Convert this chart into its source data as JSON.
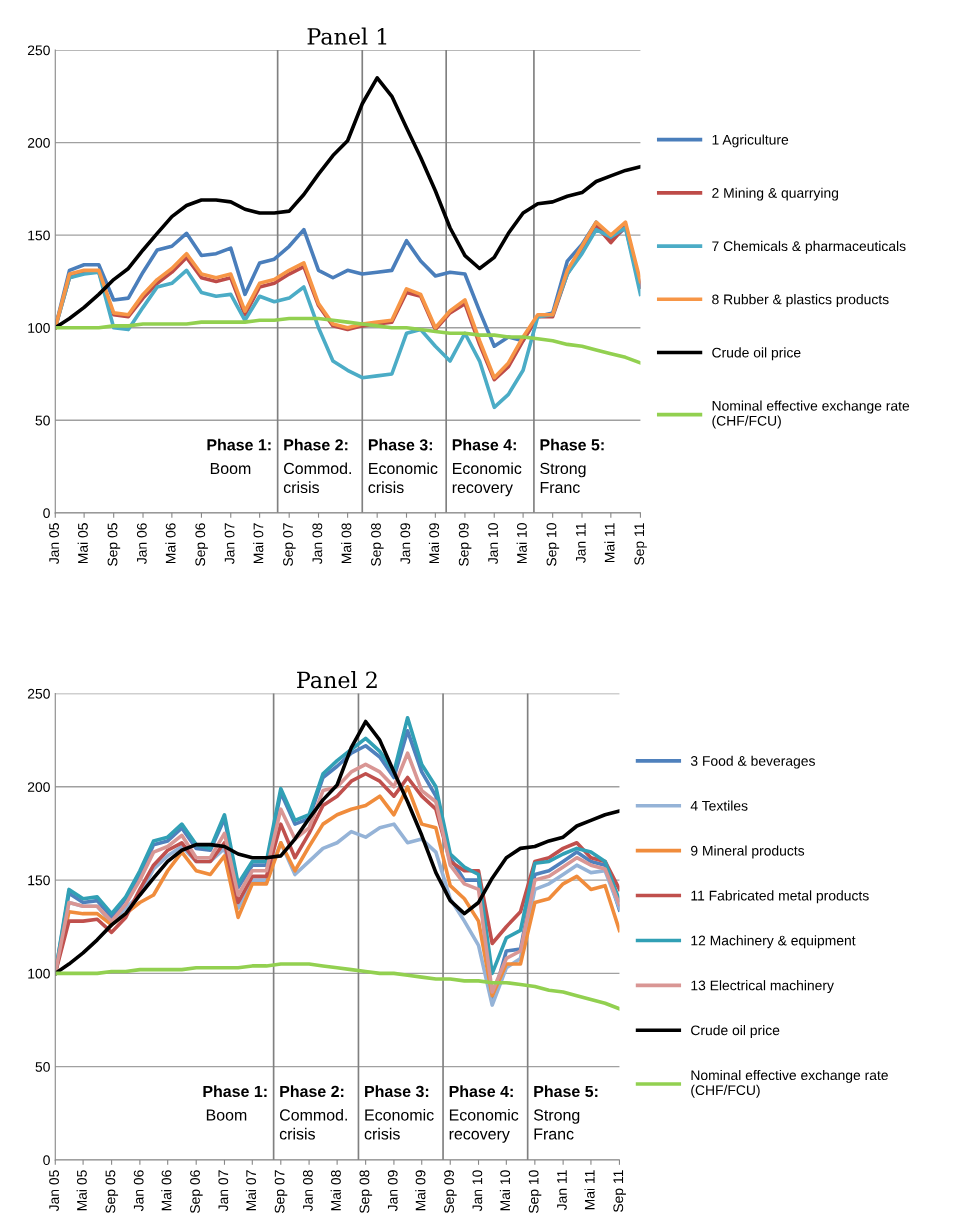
{
  "chart_data": [
    {
      "type": "line",
      "title": "Panel 1",
      "x": [
        "2005-01",
        "2005-03",
        "2005-05",
        "2005-07",
        "2005-09",
        "2005-11",
        "2006-01",
        "2006-03",
        "2006-05",
        "2006-07",
        "2006-09",
        "2006-11",
        "2007-01",
        "2007-03",
        "2007-05",
        "2007-07",
        "2007-09",
        "2007-11",
        "2008-01",
        "2008-03",
        "2008-05",
        "2008-07",
        "2008-09",
        "2008-11",
        "2009-01",
        "2009-03",
        "2009-05",
        "2009-07",
        "2009-09",
        "2009-11",
        "2010-01",
        "2010-03",
        "2010-05",
        "2010-07",
        "2010-09",
        "2010-11",
        "2011-01",
        "2011-03",
        "2011-05",
        "2011-07",
        "2011-09"
      ],
      "series": [
        {
          "name": "1 Agriculture",
          "color": "#4a7ebb",
          "values": [
            100,
            131,
            134,
            134,
            115,
            116,
            130,
            142,
            144,
            151,
            139,
            140,
            143,
            118,
            135,
            137,
            144,
            153,
            131,
            127,
            131,
            129,
            130,
            131,
            147,
            136,
            128,
            130,
            129,
            109,
            90,
            95,
            93,
            106,
            108,
            136,
            145,
            157,
            147,
            154,
            122
          ]
        },
        {
          "name": "2 Mining & quarrying",
          "color": "#be4b48",
          "values": [
            100,
            127,
            130,
            130,
            107,
            106,
            116,
            124,
            130,
            138,
            127,
            125,
            127,
            107,
            122,
            124,
            129,
            133,
            112,
            101,
            99,
            101,
            102,
            103,
            119,
            117,
            99,
            108,
            113,
            91,
            72,
            79,
            93,
            106,
            106,
            129,
            142,
            155,
            146,
            155,
            122
          ]
        },
        {
          "name": "7 Chemicals & pharmaceuticals",
          "color": "#4bacc6",
          "values": [
            100,
            127,
            129,
            130,
            100,
            99,
            111,
            122,
            124,
            131,
            119,
            117,
            118,
            104,
            117,
            114,
            116,
            122,
            100,
            82,
            77,
            73,
            74,
            75,
            97,
            99,
            90,
            82,
            97,
            82,
            57,
            64,
            77,
            106,
            107,
            129,
            140,
            153,
            149,
            154,
            118
          ]
        },
        {
          "name": "8 Rubber & plastics products",
          "color": "#f79646",
          "values": [
            100,
            129,
            131,
            131,
            108,
            107,
            118,
            126,
            132,
            140,
            129,
            127,
            129,
            109,
            124,
            126,
            131,
            135,
            113,
            102,
            100,
            102,
            103,
            104,
            121,
            118,
            100,
            109,
            115,
            93,
            73,
            81,
            95,
            107,
            107,
            131,
            144,
            157,
            150,
            157,
            125
          ]
        },
        {
          "name": "Crude oil price",
          "color": "#000000",
          "values": [
            100,
            105,
            111,
            118,
            126,
            132,
            142,
            151,
            160,
            166,
            169,
            169,
            168,
            164,
            162,
            162,
            163,
            172,
            183,
            193,
            201,
            221,
            235,
            225,
            208,
            192,
            174,
            154,
            139,
            132,
            138,
            151,
            162,
            167,
            168,
            171,
            173,
            179,
            182,
            185,
            187
          ]
        },
        {
          "name": "Nominal effective exchange rate\n(CHF/FCU)",
          "color": "#92d050",
          "values": [
            100,
            100,
            100,
            100,
            101,
            101,
            102,
            102,
            102,
            102,
            103,
            103,
            103,
            103,
            104,
            104,
            105,
            105,
            105,
            104,
            103,
            102,
            101,
            100,
            100,
            99,
            98,
            97,
            97,
            96,
            96,
            95,
            95,
            94,
            93,
            91,
            90,
            88,
            86,
            84,
            81
          ]
        }
      ],
      "xlim": [
        "2005-01",
        "2011-09"
      ],
      "ylim": [
        0,
        250
      ],
      "yticks": [
        0,
        50,
        100,
        150,
        200,
        250
      ],
      "xticks": [
        {
          "value": "2005-01",
          "label": "Jan 05"
        },
        {
          "value": "2005-05",
          "label": "Mai 05"
        },
        {
          "value": "2005-09",
          "label": "Sep 05"
        },
        {
          "value": "2006-01",
          "label": "Jan 06"
        },
        {
          "value": "2006-05",
          "label": "Mai 06"
        },
        {
          "value": "2006-09",
          "label": "Sep 06"
        },
        {
          "value": "2007-01",
          "label": "Jan 07"
        },
        {
          "value": "2007-05",
          "label": "Mai 07"
        },
        {
          "value": "2007-09",
          "label": "Sep 07"
        },
        {
          "value": "2008-01",
          "label": "Jan 08"
        },
        {
          "value": "2008-05",
          "label": "Mai 08"
        },
        {
          "value": "2008-09",
          "label": "Sep 08"
        },
        {
          "value": "2009-01",
          "label": "Jan 09"
        },
        {
          "value": "2009-05",
          "label": "Mai 09"
        },
        {
          "value": "2009-09",
          "label": "Sep 09"
        },
        {
          "value": "2010-01",
          "label": "Jan 10"
        },
        {
          "value": "2010-05",
          "label": "Mai 10"
        },
        {
          "value": "2010-09",
          "label": "Sep 10"
        },
        {
          "value": "2011-01",
          "label": "Jan 11"
        },
        {
          "value": "2011-05",
          "label": "Mai 11"
        },
        {
          "value": "2011-09",
          "label": "Sep 11"
        }
      ],
      "grid": "y",
      "legend": "right",
      "ref_lines": [
        {
          "axis": "x",
          "value": "2007-07-15",
          "color": "#808080"
        },
        {
          "axis": "x",
          "value": "2008-07-01",
          "color": "#808080"
        },
        {
          "axis": "x",
          "value": "2009-06-15",
          "color": "#808080"
        },
        {
          "axis": "x",
          "value": "2010-06-15",
          "color": "#808080"
        }
      ],
      "annotations": [
        "Phase 1:\nBoom",
        "Phase 2:\nCommod.\ncrisis",
        "Phase 3:\nEconomic\ncrisis",
        "Phase 4:\nEconomic\nrecovery",
        "Phase 5:\nStrong\nFranc"
      ]
    },
    {
      "type": "line",
      "title": "Panel 2",
      "x": [
        "2005-01",
        "2005-03",
        "2005-05",
        "2005-07",
        "2005-09",
        "2005-11",
        "2006-01",
        "2006-03",
        "2006-05",
        "2006-07",
        "2006-09",
        "2006-11",
        "2007-01",
        "2007-03",
        "2007-05",
        "2007-07",
        "2007-09",
        "2007-11",
        "2008-01",
        "2008-03",
        "2008-05",
        "2008-07",
        "2008-09",
        "2008-11",
        "2009-01",
        "2009-03",
        "2009-05",
        "2009-07",
        "2009-09",
        "2009-11",
        "2010-01",
        "2010-03",
        "2010-05",
        "2010-07",
        "2010-09",
        "2010-11",
        "2011-01",
        "2011-03",
        "2011-05",
        "2011-07",
        "2011-09"
      ],
      "series": [
        {
          "name": "3 Food & beverages",
          "color": "#4f81bd",
          "values": [
            100,
            143,
            138,
            139,
            130,
            140,
            153,
            169,
            171,
            178,
            167,
            166,
            183,
            146,
            158,
            158,
            197,
            180,
            183,
            205,
            211,
            218,
            222,
            216,
            205,
            230,
            208,
            195,
            162,
            150,
            150,
            85,
            112,
            113,
            153,
            155,
            160,
            165,
            160,
            158,
            134
          ]
        },
        {
          "name": "4 Textiles",
          "color": "#95b3d7",
          "values": [
            100,
            138,
            136,
            136,
            127,
            135,
            142,
            156,
            163,
            168,
            160,
            160,
            167,
            135,
            150,
            150,
            170,
            153,
            160,
            167,
            170,
            176,
            173,
            178,
            180,
            170,
            172,
            165,
            140,
            128,
            115,
            83,
            103,
            108,
            145,
            148,
            153,
            158,
            154,
            155,
            135
          ]
        },
        {
          "name": "9 Mineral products",
          "color": "#f08c3c",
          "values": [
            100,
            133,
            132,
            132,
            126,
            132,
            138,
            142,
            155,
            165,
            155,
            153,
            163,
            130,
            148,
            148,
            170,
            155,
            168,
            180,
            185,
            188,
            190,
            195,
            185,
            200,
            180,
            178,
            147,
            140,
            128,
            88,
            105,
            105,
            138,
            140,
            148,
            152,
            145,
            147,
            123
          ]
        },
        {
          "name": "11 Fabricated metal products",
          "color": "#c0504d",
          "values": [
            100,
            128,
            128,
            129,
            122,
            130,
            145,
            158,
            166,
            170,
            160,
            160,
            170,
            138,
            152,
            152,
            180,
            162,
            175,
            190,
            195,
            203,
            207,
            203,
            195,
            205,
            195,
            188,
            160,
            155,
            155,
            116,
            125,
            133,
            160,
            162,
            167,
            170,
            162,
            160,
            145
          ]
        },
        {
          "name": "12 Machinery & equipment",
          "color": "#31a0b5",
          "values": [
            100,
            145,
            140,
            141,
            132,
            141,
            155,
            171,
            173,
            180,
            169,
            167,
            185,
            148,
            160,
            160,
            199,
            182,
            185,
            207,
            214,
            220,
            226,
            219,
            208,
            237,
            212,
            200,
            164,
            157,
            153,
            100,
            119,
            123,
            159,
            160,
            164,
            167,
            165,
            160,
            139
          ]
        },
        {
          "name": "13 Electrical machinery",
          "color": "#d99694",
          "values": [
            100,
            138,
            136,
            136,
            128,
            137,
            150,
            165,
            168,
            174,
            162,
            162,
            175,
            142,
            155,
            155,
            188,
            172,
            178,
            198,
            200,
            208,
            212,
            208,
            200,
            218,
            198,
            192,
            158,
            148,
            145,
            90,
            108,
            112,
            150,
            152,
            157,
            162,
            158,
            156,
            137
          ]
        },
        {
          "name": "Crude oil price",
          "color": "#000000",
          "values": [
            100,
            105,
            111,
            118,
            126,
            132,
            142,
            151,
            160,
            166,
            169,
            169,
            168,
            164,
            162,
            162,
            163,
            172,
            183,
            193,
            201,
            221,
            235,
            225,
            208,
            192,
            174,
            154,
            139,
            132,
            138,
            151,
            162,
            167,
            168,
            171,
            173,
            179,
            182,
            185,
            187
          ]
        },
        {
          "name": "Nominal effective exchange rate\n(CHF/FCU)",
          "color": "#92d050",
          "values": [
            100,
            100,
            100,
            100,
            101,
            101,
            102,
            102,
            102,
            102,
            103,
            103,
            103,
            103,
            104,
            104,
            105,
            105,
            105,
            104,
            103,
            102,
            101,
            100,
            100,
            99,
            98,
            97,
            97,
            96,
            96,
            95,
            95,
            94,
            93,
            91,
            90,
            88,
            86,
            84,
            81
          ]
        }
      ],
      "xlim": [
        "2005-01",
        "2011-09"
      ],
      "ylim": [
        0,
        250
      ],
      "yticks": [
        0,
        50,
        100,
        150,
        200,
        250
      ],
      "xticks": [
        {
          "value": "2005-01",
          "label": "Jan 05"
        },
        {
          "value": "2005-05",
          "label": "Mai 05"
        },
        {
          "value": "2005-09",
          "label": "Sep 05"
        },
        {
          "value": "2006-01",
          "label": "Jan 06"
        },
        {
          "value": "2006-05",
          "label": "Mai 06"
        },
        {
          "value": "2006-09",
          "label": "Sep 06"
        },
        {
          "value": "2007-01",
          "label": "Jan 07"
        },
        {
          "value": "2007-05",
          "label": "Mai 07"
        },
        {
          "value": "2007-09",
          "label": "Sep 07"
        },
        {
          "value": "2008-01",
          "label": "Jan 08"
        },
        {
          "value": "2008-05",
          "label": "Mai 08"
        },
        {
          "value": "2008-09",
          "label": "Sep 08"
        },
        {
          "value": "2009-01",
          "label": "Jan 09"
        },
        {
          "value": "2009-05",
          "label": "Mai 09"
        },
        {
          "value": "2009-09",
          "label": "Sep 09"
        },
        {
          "value": "2010-01",
          "label": "Jan 10"
        },
        {
          "value": "2010-05",
          "label": "Mai 10"
        },
        {
          "value": "2010-09",
          "label": "Sep 10"
        },
        {
          "value": "2011-01",
          "label": "Jan 11"
        },
        {
          "value": "2011-05",
          "label": "Mai 11"
        },
        {
          "value": "2011-09",
          "label": "Sep 11"
        }
      ],
      "grid": "y",
      "legend": "right",
      "ref_lines": [
        {
          "axis": "x",
          "value": "2007-08",
          "color": "#808080"
        },
        {
          "axis": "x",
          "value": "2008-08",
          "color": "#808080"
        },
        {
          "axis": "x",
          "value": "2009-08",
          "color": "#808080"
        },
        {
          "axis": "x",
          "value": "2010-08",
          "color": "#808080"
        }
      ],
      "annotations": [
        "Phase 1:\nBoom",
        "Phase 2:\nCommod.\ncrisis",
        "Phase 3:\nEconomic\ncrisis",
        "Phase 4:\nEconomic\nrecovery",
        "Phase 5:\nStrong\nFranc"
      ]
    }
  ]
}
